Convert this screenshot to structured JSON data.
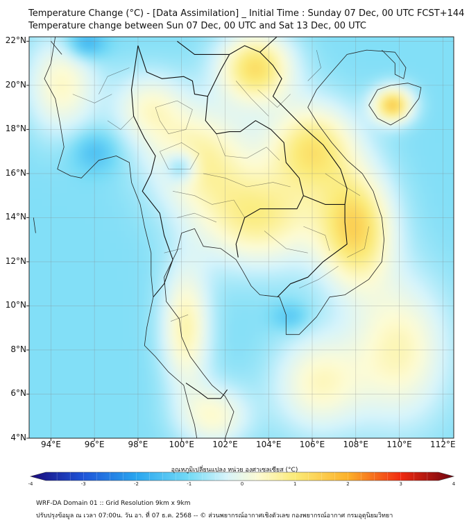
{
  "title_line1": "Temperature Change (°C) - [Data Assimilation] _ Initial Time : Sunday 07 Dec, 00 UTC FCST+144",
  "title_line2": "Temperature change between Sun 07 Dec, 00 UTC and Sat 13 Dec, 00 UTC",
  "lat_labels": [
    "22°N",
    "20°N",
    "18°N",
    "16°N",
    "14°N",
    "12°N",
    "10°N",
    "8°N",
    "6°N",
    "4°N"
  ],
  "lon_labels": [
    "94°E",
    "96°E",
    "98°E",
    "100°E",
    "102°E",
    "104°E",
    "106°E",
    "108°E",
    "110°E",
    "112°E"
  ],
  "colorbar": {
    "title": "อุณหภูมิเปลี่ยนแปลง หน่วย องศาเซลเซียส (°C)",
    "ticks": [
      "-4",
      "-3",
      "-2",
      "-1",
      "0",
      "1",
      "2",
      "3",
      "4"
    ],
    "range": [
      -4,
      4
    ],
    "stops": [
      {
        "v": -4.0,
        "color": "#1a0a7a"
      },
      {
        "v": -3.0,
        "color": "#1f55d8"
      },
      {
        "v": -2.0,
        "color": "#2aa6ef"
      },
      {
        "v": -1.0,
        "color": "#74dbf6"
      },
      {
        "v": -0.3,
        "color": "#d7f4fb"
      },
      {
        "v": 0.3,
        "color": "#fdfbd4"
      },
      {
        "v": 1.0,
        "color": "#fbeb78"
      },
      {
        "v": 2.0,
        "color": "#fcb12a"
      },
      {
        "v": 3.0,
        "color": "#f02a10"
      },
      {
        "v": 4.0,
        "color": "#6e0410"
      }
    ]
  },
  "map": {
    "lon_range": [
      93,
      112.5
    ],
    "lat_range": [
      4,
      22.2
    ],
    "background_value": -0.9,
    "anomalies": [
      {
        "lon": 103.4,
        "lat": 20.8,
        "dv": 2.1,
        "rx": 1.7,
        "ry": 1.6
      },
      {
        "lon": 106.0,
        "lat": 17.2,
        "dv": 1.9,
        "rx": 2.0,
        "ry": 2.0
      },
      {
        "lon": 108.0,
        "lat": 13.5,
        "dv": 2.2,
        "rx": 1.7,
        "ry": 2.6
      },
      {
        "lon": 103.5,
        "lat": 14.0,
        "dv": 1.7,
        "rx": 2.8,
        "ry": 2.2
      },
      {
        "lon": 100.8,
        "lat": 16.8,
        "dv": 1.5,
        "rx": 2.3,
        "ry": 2.3
      },
      {
        "lon": 98.5,
        "lat": 19.0,
        "dv": 1.1,
        "rx": 1.6,
        "ry": 1.6
      },
      {
        "lon": 109.7,
        "lat": 19.1,
        "dv": 2.4,
        "rx": 0.9,
        "ry": 0.8
      },
      {
        "lon": 100.2,
        "lat": 9.0,
        "dv": 1.5,
        "rx": 1.1,
        "ry": 2.8
      },
      {
        "lon": 101.5,
        "lat": 5.0,
        "dv": 1.2,
        "rx": 1.6,
        "ry": 1.4
      },
      {
        "lon": 106.3,
        "lat": 6.5,
        "dv": 1.3,
        "rx": 2.0,
        "ry": 2.2
      },
      {
        "lon": 110.0,
        "lat": 8.0,
        "dv": 1.4,
        "rx": 2.2,
        "ry": 3.2
      },
      {
        "lon": 94.5,
        "lat": 20.0,
        "dv": 1.3,
        "rx": 1.6,
        "ry": 2.2
      },
      {
        "lon": 95.6,
        "lat": 21.9,
        "dv": -1.1,
        "rx": 0.9,
        "ry": 0.7
      },
      {
        "lon": 96.0,
        "lat": 17.0,
        "dv": -0.7,
        "rx": 1.0,
        "ry": 0.9
      },
      {
        "lon": 100.0,
        "lat": 16.3,
        "dv": -1.2,
        "rx": 0.7,
        "ry": 0.7
      },
      {
        "lon": 105.0,
        "lat": 9.5,
        "dv": -0.6,
        "rx": 0.8,
        "ry": 0.6
      }
    ],
    "coastlines": [
      [
        [
          94.2,
          22.2
        ],
        [
          94.0,
          21.0
        ],
        [
          93.7,
          20.3
        ],
        [
          94.2,
          19.4
        ],
        [
          94.4,
          18.4
        ],
        [
          94.6,
          17.2
        ],
        [
          94.3,
          16.2
        ],
        [
          94.9,
          15.9
        ],
        [
          95.4,
          15.8
        ],
        [
          96.2,
          16.6
        ],
        [
          97.0,
          16.8
        ],
        [
          97.6,
          16.5
        ],
        [
          97.7,
          15.6
        ],
        [
          98.1,
          14.6
        ],
        [
          98.3,
          13.6
        ],
        [
          98.6,
          12.4
        ],
        [
          98.6,
          11.4
        ],
        [
          98.7,
          10.4
        ],
        [
          98.4,
          9.0
        ],
        [
          98.3,
          8.2
        ],
        [
          98.8,
          7.7
        ],
        [
          99.4,
          7.0
        ],
        [
          100.1,
          6.4
        ],
        [
          100.3,
          5.6
        ],
        [
          100.6,
          4.6
        ],
        [
          100.7,
          4.0
        ]
      ],
      [
        [
          102.0,
          4.0
        ],
        [
          102.4,
          5.2
        ],
        [
          102.0,
          5.9
        ],
        [
          101.4,
          6.4
        ],
        [
          101.0,
          6.9
        ],
        [
          100.4,
          7.7
        ],
        [
          100.0,
          8.6
        ],
        [
          99.9,
          9.4
        ],
        [
          99.3,
          10.2
        ],
        [
          99.2,
          11.3
        ],
        [
          99.8,
          12.5
        ],
        [
          100.0,
          13.3
        ],
        [
          100.6,
          13.5
        ],
        [
          101.0,
          12.7
        ],
        [
          101.8,
          12.6
        ],
        [
          102.5,
          12.1
        ],
        [
          102.8,
          11.6
        ],
        [
          103.2,
          10.9
        ],
        [
          103.6,
          10.5
        ],
        [
          104.5,
          10.4
        ],
        [
          104.8,
          9.6
        ],
        [
          104.8,
          8.7
        ],
        [
          105.4,
          8.7
        ],
        [
          106.2,
          9.5
        ],
        [
          106.8,
          10.4
        ],
        [
          107.5,
          10.5
        ],
        [
          108.6,
          11.2
        ],
        [
          109.2,
          12.0
        ],
        [
          109.3,
          13.0
        ],
        [
          109.2,
          14.0
        ],
        [
          108.8,
          15.2
        ],
        [
          108.3,
          16.0
        ],
        [
          107.6,
          16.6
        ],
        [
          106.9,
          17.4
        ],
        [
          106.3,
          18.2
        ],
        [
          105.8,
          19.0
        ],
        [
          106.2,
          19.8
        ],
        [
          106.8,
          20.5
        ],
        [
          107.6,
          21.4
        ],
        [
          108.5,
          21.6
        ],
        [
          109.8,
          21.5
        ],
        [
          110.3,
          20.8
        ],
        [
          110.2,
          20.3
        ],
        [
          109.8,
          20.5
        ],
        [
          109.8,
          21.0
        ],
        [
          109.2,
          21.6
        ]
      ],
      [
        [
          108.6,
          19.1
        ],
        [
          109.0,
          18.5
        ],
        [
          109.6,
          18.2
        ],
        [
          110.3,
          18.6
        ],
        [
          110.9,
          19.4
        ],
        [
          111.0,
          19.9
        ],
        [
          110.4,
          20.1
        ],
        [
          109.6,
          20.0
        ],
        [
          109.0,
          19.8
        ],
        [
          108.6,
          19.1
        ]
      ],
      [
        [
          94.0,
          22.0
        ],
        [
          94.5,
          21.4
        ]
      ],
      [
        [
          93.2,
          14.0
        ],
        [
          93.3,
          13.3
        ]
      ]
    ],
    "borders": [
      [
        [
          98.0,
          21.8
        ],
        [
          98.4,
          20.6
        ],
        [
          99.1,
          20.3
        ],
        [
          100.1,
          20.4
        ],
        [
          100.5,
          20.2
        ],
        [
          100.6,
          19.6
        ],
        [
          101.2,
          19.5
        ],
        [
          101.1,
          18.4
        ],
        [
          101.6,
          17.8
        ],
        [
          102.2,
          17.9
        ],
        [
          102.7,
          17.9
        ],
        [
          103.4,
          18.4
        ],
        [
          104.1,
          18.0
        ],
        [
          104.7,
          17.4
        ],
        [
          104.8,
          16.5
        ],
        [
          105.4,
          15.8
        ],
        [
          105.6,
          15.0
        ],
        [
          105.3,
          14.4
        ],
        [
          104.6,
          14.4
        ],
        [
          103.6,
          14.4
        ],
        [
          102.9,
          14.0
        ],
        [
          102.5,
          12.8
        ],
        [
          102.6,
          12.2
        ]
      ],
      [
        [
          98.0,
          21.8
        ],
        [
          97.7,
          19.8
        ],
        [
          97.8,
          18.6
        ],
        [
          98.3,
          17.6
        ],
        [
          98.8,
          16.8
        ],
        [
          98.6,
          16.0
        ],
        [
          98.2,
          15.2
        ],
        [
          99.0,
          14.2
        ],
        [
          99.2,
          13.2
        ],
        [
          99.6,
          12.1
        ],
        [
          99.2,
          11.0
        ],
        [
          98.7,
          10.4
        ]
      ],
      [
        [
          100.2,
          6.5
        ],
        [
          100.8,
          6.1
        ],
        [
          101.2,
          5.8
        ],
        [
          101.8,
          5.8
        ],
        [
          102.1,
          6.2
        ]
      ],
      [
        [
          101.2,
          19.5
        ],
        [
          101.8,
          20.7
        ],
        [
          102.2,
          21.4
        ],
        [
          102.9,
          21.8
        ],
        [
          103.6,
          21.5
        ],
        [
          104.2,
          20.9
        ],
        [
          104.6,
          20.3
        ],
        [
          104.2,
          19.5
        ],
        [
          105.1,
          18.6
        ],
        [
          105.6,
          18.1
        ],
        [
          106.5,
          17.3
        ],
        [
          107.3,
          16.2
        ],
        [
          107.6,
          15.3
        ],
        [
          107.5,
          14.6
        ]
      ],
      [
        [
          105.6,
          15.0
        ],
        [
          106.6,
          14.6
        ],
        [
          107.5,
          14.6
        ],
        [
          107.5,
          13.8
        ],
        [
          107.6,
          12.8
        ],
        [
          106.5,
          12.0
        ],
        [
          105.8,
          11.3
        ],
        [
          105.0,
          11.0
        ],
        [
          104.4,
          10.4
        ]
      ],
      [
        [
          102.2,
          21.4
        ],
        [
          101.4,
          21.4
        ],
        [
          100.6,
          21.4
        ],
        [
          99.8,
          22.0
        ]
      ],
      [
        [
          103.6,
          21.5
        ],
        [
          104.6,
          22.4
        ]
      ]
    ],
    "provinces": [
      [
        [
          98.8,
          19.0
        ],
        [
          99.8,
          19.3
        ],
        [
          100.5,
          18.9
        ],
        [
          100.2,
          18.0
        ],
        [
          99.4,
          17.8
        ],
        [
          99.0,
          18.4
        ],
        [
          98.8,
          19.0
        ]
      ],
      [
        [
          99.0,
          17.0
        ],
        [
          100.0,
          17.4
        ],
        [
          100.8,
          16.9
        ],
        [
          100.4,
          16.2
        ],
        [
          99.4,
          16.2
        ],
        [
          99.0,
          17.0
        ]
      ],
      [
        [
          101.6,
          17.8
        ],
        [
          102.0,
          16.8
        ],
        [
          103.0,
          16.7
        ],
        [
          103.9,
          17.2
        ],
        [
          104.5,
          16.6
        ]
      ],
      [
        [
          101.0,
          16.0
        ],
        [
          102.0,
          15.8
        ],
        [
          103.0,
          15.4
        ],
        [
          104.2,
          15.6
        ],
        [
          105.0,
          15.4
        ]
      ],
      [
        [
          99.6,
          15.2
        ],
        [
          100.6,
          15.0
        ],
        [
          101.4,
          14.6
        ],
        [
          102.4,
          14.8
        ],
        [
          102.9,
          14.0
        ]
      ],
      [
        [
          99.8,
          14.0
        ],
        [
          100.6,
          14.2
        ],
        [
          101.6,
          13.8
        ]
      ],
      [
        [
          99.2,
          12.4
        ],
        [
          100.0,
          12.6
        ]
      ],
      [
        [
          99.5,
          9.3
        ],
        [
          100.3,
          9.6
        ]
      ],
      [
        [
          103.5,
          19.8
        ],
        [
          104.4,
          19.0
        ],
        [
          105.0,
          19.6
        ]
      ],
      [
        [
          102.5,
          20.2
        ],
        [
          103.2,
          19.4
        ],
        [
          104.0,
          18.6
        ]
      ],
      [
        [
          105.6,
          13.6
        ],
        [
          106.6,
          13.2
        ],
        [
          106.8,
          12.5
        ]
      ],
      [
        [
          103.8,
          13.4
        ],
        [
          104.8,
          12.6
        ],
        [
          105.8,
          12.4
        ]
      ],
      [
        [
          105.4,
          10.8
        ],
        [
          106.3,
          11.2
        ],
        [
          107.2,
          11.8
        ]
      ],
      [
        [
          107.6,
          12.2
        ],
        [
          108.4,
          12.6
        ],
        [
          108.6,
          13.6
        ]
      ],
      [
        [
          106.6,
          16.0
        ],
        [
          107.2,
          15.6
        ],
        [
          108.2,
          15.0
        ]
      ],
      [
        [
          105.8,
          20.2
        ],
        [
          106.4,
          20.8
        ],
        [
          106.2,
          21.6
        ]
      ],
      [
        [
          97.6,
          20.8
        ],
        [
          96.6,
          20.4
        ],
        [
          96.2,
          19.6
        ]
      ],
      [
        [
          96.6,
          18.4
        ],
        [
          97.2,
          18.0
        ],
        [
          97.8,
          18.6
        ]
      ],
      [
        [
          95.0,
          19.6
        ],
        [
          96.0,
          19.2
        ],
        [
          96.8,
          19.6
        ]
      ]
    ]
  },
  "footer_line1": "WRF-DA Domain 01 :: Grid Resolution 9km x 9km",
  "footer_line2": "ปรับปรุงข้อมูล ณ เวลา 07:00น. วัน อา. ที่ 07 ธ.ค. 2568 -- © ส่วนพยากรณ์อากาศเชิงตัวเลข กองพยากรณ์อากาศ กรมอุตุนิยมวิทยา"
}
